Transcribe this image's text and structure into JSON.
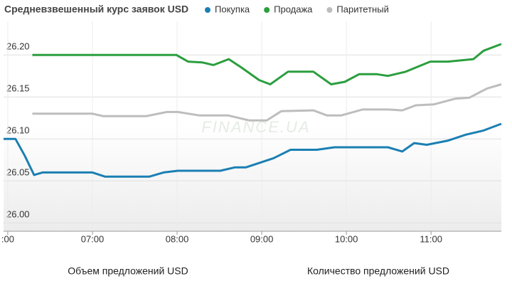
{
  "chart_data": {
    "type": "line",
    "title": "Средневзвешенный курс заявок USD",
    "watermark": "FINANCE.UA",
    "footer_labels": [
      "Объем предложений USD",
      "Количество предложений USD"
    ],
    "xlim": [
      5.95,
      11.83
    ],
    "xticks": [
      {
        "value": 6,
        "label": ":00"
      },
      {
        "value": 7,
        "label": "07:00"
      },
      {
        "value": 8,
        "label": "08:00"
      },
      {
        "value": 9,
        "label": "09:00"
      },
      {
        "value": 10,
        "label": "10:00"
      },
      {
        "value": 11,
        "label": "11:00"
      }
    ],
    "ylim": [
      25.99,
      26.24
    ],
    "yticks": [
      {
        "value": 26.0,
        "label": "26.00"
      },
      26.05,
      {
        "value": 26.1,
        "label": "26.10"
      },
      26.15,
      {
        "value": 26.2,
        "label": "26.20"
      }
    ],
    "grid": true,
    "series": [
      {
        "name": "Покупка",
        "color": "#1b7fb3",
        "x": [
          5.95,
          6.09,
          6.2,
          6.31,
          6.41,
          7.0,
          7.15,
          7.67,
          7.84,
          8.01,
          8.51,
          8.68,
          8.81,
          9.02,
          9.14,
          9.34,
          9.65,
          9.86,
          10.49,
          10.66,
          10.8,
          10.95,
          11.2,
          11.41,
          11.62,
          11.83
        ],
        "values": [
          26.1,
          26.1,
          26.08,
          26.057,
          26.06,
          26.06,
          26.055,
          26.055,
          26.06,
          26.062,
          26.062,
          26.066,
          26.066,
          26.073,
          26.077,
          26.087,
          26.087,
          26.09,
          26.09,
          26.085,
          26.095,
          26.093,
          26.098,
          26.105,
          26.11,
          26.118
        ]
      },
      {
        "name": "Продажа",
        "color": "#2b9e3e",
        "x": [
          6.29,
          7.99,
          8.13,
          8.3,
          8.43,
          8.61,
          8.76,
          8.97,
          9.1,
          9.31,
          9.61,
          9.82,
          9.98,
          10.15,
          10.36,
          10.49,
          10.7,
          10.82,
          10.99,
          11.2,
          11.5,
          11.62,
          11.83
        ],
        "values": [
          26.2,
          26.2,
          26.192,
          26.191,
          26.188,
          26.195,
          26.185,
          26.17,
          26.165,
          26.18,
          26.18,
          26.165,
          26.168,
          26.177,
          26.177,
          26.175,
          26.18,
          26.185,
          26.192,
          26.192,
          26.195,
          26.205,
          26.213
        ]
      },
      {
        "name": "Паритетный",
        "color": "#bdbdbd",
        "x": [
          6.29,
          7.0,
          7.13,
          7.63,
          7.88,
          8.01,
          8.26,
          8.6,
          8.85,
          9.06,
          9.23,
          9.61,
          9.77,
          9.94,
          10.19,
          10.49,
          10.66,
          10.82,
          11.03,
          11.29,
          11.45,
          11.66,
          11.83
        ],
        "values": [
          26.13,
          26.13,
          26.127,
          26.127,
          26.132,
          26.132,
          26.128,
          26.128,
          26.122,
          26.122,
          26.133,
          26.134,
          26.128,
          26.128,
          26.135,
          26.135,
          26.134,
          26.14,
          26.141,
          26.148,
          26.149,
          26.16,
          26.165
        ]
      }
    ]
  }
}
